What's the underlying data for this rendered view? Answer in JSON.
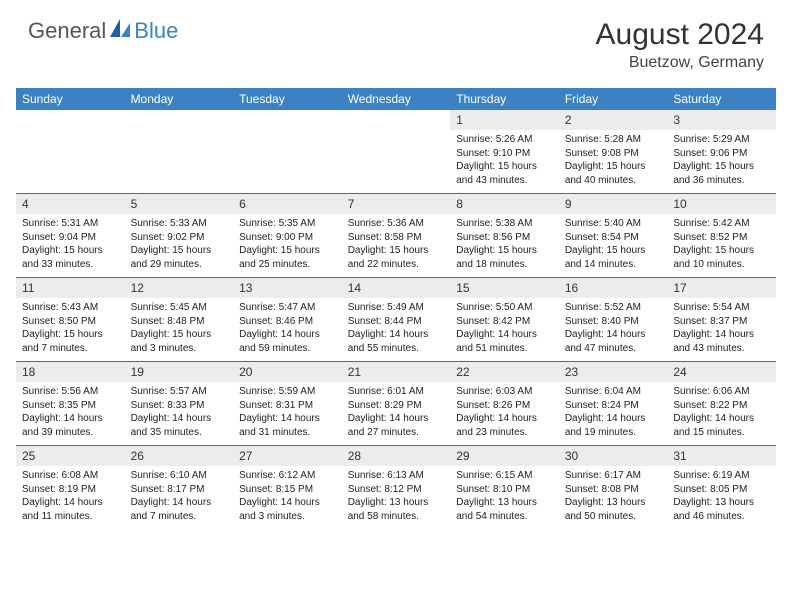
{
  "logo": {
    "text1": "General",
    "text2": "Blue"
  },
  "title": "August 2024",
  "subtitle": "Buetzow, Germany",
  "colors": {
    "header_bg": "#3b82c4",
    "header_text": "#ffffff",
    "numrow_bg": "#ececec",
    "border": "#3b6fa0",
    "body_text": "#222222"
  },
  "day_headers": [
    "Sunday",
    "Monday",
    "Tuesday",
    "Wednesday",
    "Thursday",
    "Friday",
    "Saturday"
  ],
  "weeks": [
    {
      "nums": [
        "",
        "",
        "",
        "",
        "1",
        "2",
        "3"
      ],
      "details": [
        "",
        "",
        "",
        "",
        "Sunrise: 5:26 AM\nSunset: 9:10 PM\nDaylight: 15 hours and 43 minutes.",
        "Sunrise: 5:28 AM\nSunset: 9:08 PM\nDaylight: 15 hours and 40 minutes.",
        "Sunrise: 5:29 AM\nSunset: 9:06 PM\nDaylight: 15 hours and 36 minutes."
      ]
    },
    {
      "nums": [
        "4",
        "5",
        "6",
        "7",
        "8",
        "9",
        "10"
      ],
      "details": [
        "Sunrise: 5:31 AM\nSunset: 9:04 PM\nDaylight: 15 hours and 33 minutes.",
        "Sunrise: 5:33 AM\nSunset: 9:02 PM\nDaylight: 15 hours and 29 minutes.",
        "Sunrise: 5:35 AM\nSunset: 9:00 PM\nDaylight: 15 hours and 25 minutes.",
        "Sunrise: 5:36 AM\nSunset: 8:58 PM\nDaylight: 15 hours and 22 minutes.",
        "Sunrise: 5:38 AM\nSunset: 8:56 PM\nDaylight: 15 hours and 18 minutes.",
        "Sunrise: 5:40 AM\nSunset: 8:54 PM\nDaylight: 15 hours and 14 minutes.",
        "Sunrise: 5:42 AM\nSunset: 8:52 PM\nDaylight: 15 hours and 10 minutes."
      ]
    },
    {
      "nums": [
        "11",
        "12",
        "13",
        "14",
        "15",
        "16",
        "17"
      ],
      "details": [
        "Sunrise: 5:43 AM\nSunset: 8:50 PM\nDaylight: 15 hours and 7 minutes.",
        "Sunrise: 5:45 AM\nSunset: 8:48 PM\nDaylight: 15 hours and 3 minutes.",
        "Sunrise: 5:47 AM\nSunset: 8:46 PM\nDaylight: 14 hours and 59 minutes.",
        "Sunrise: 5:49 AM\nSunset: 8:44 PM\nDaylight: 14 hours and 55 minutes.",
        "Sunrise: 5:50 AM\nSunset: 8:42 PM\nDaylight: 14 hours and 51 minutes.",
        "Sunrise: 5:52 AM\nSunset: 8:40 PM\nDaylight: 14 hours and 47 minutes.",
        "Sunrise: 5:54 AM\nSunset: 8:37 PM\nDaylight: 14 hours and 43 minutes."
      ]
    },
    {
      "nums": [
        "18",
        "19",
        "20",
        "21",
        "22",
        "23",
        "24"
      ],
      "details": [
        "Sunrise: 5:56 AM\nSunset: 8:35 PM\nDaylight: 14 hours and 39 minutes.",
        "Sunrise: 5:57 AM\nSunset: 8:33 PM\nDaylight: 14 hours and 35 minutes.",
        "Sunrise: 5:59 AM\nSunset: 8:31 PM\nDaylight: 14 hours and 31 minutes.",
        "Sunrise: 6:01 AM\nSunset: 8:29 PM\nDaylight: 14 hours and 27 minutes.",
        "Sunrise: 6:03 AM\nSunset: 8:26 PM\nDaylight: 14 hours and 23 minutes.",
        "Sunrise: 6:04 AM\nSunset: 8:24 PM\nDaylight: 14 hours and 19 minutes.",
        "Sunrise: 6:06 AM\nSunset: 8:22 PM\nDaylight: 14 hours and 15 minutes."
      ]
    },
    {
      "nums": [
        "25",
        "26",
        "27",
        "28",
        "29",
        "30",
        "31"
      ],
      "details": [
        "Sunrise: 6:08 AM\nSunset: 8:19 PM\nDaylight: 14 hours and 11 minutes.",
        "Sunrise: 6:10 AM\nSunset: 8:17 PM\nDaylight: 14 hours and 7 minutes.",
        "Sunrise: 6:12 AM\nSunset: 8:15 PM\nDaylight: 14 hours and 3 minutes.",
        "Sunrise: 6:13 AM\nSunset: 8:12 PM\nDaylight: 13 hours and 58 minutes.",
        "Sunrise: 6:15 AM\nSunset: 8:10 PM\nDaylight: 13 hours and 54 minutes.",
        "Sunrise: 6:17 AM\nSunset: 8:08 PM\nDaylight: 13 hours and 50 minutes.",
        "Sunrise: 6:19 AM\nSunset: 8:05 PM\nDaylight: 13 hours and 46 minutes."
      ]
    }
  ]
}
